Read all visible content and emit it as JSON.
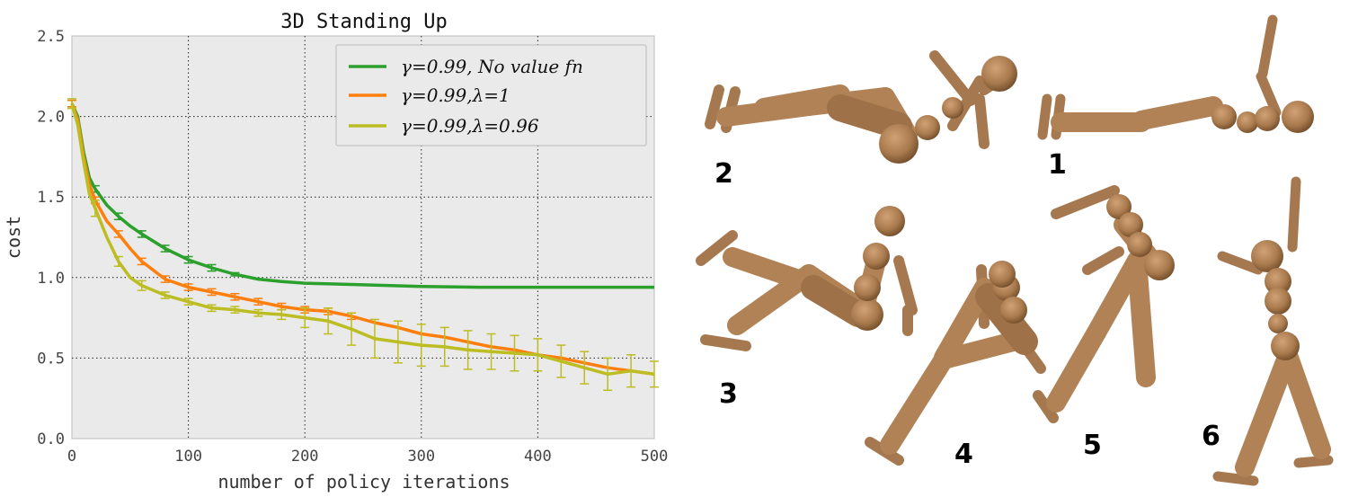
{
  "chart_data": {
    "type": "line",
    "title": "3D Standing Up",
    "xlabel": "number of policy iterations",
    "ylabel": "cost",
    "xlim": [
      0,
      500
    ],
    "ylim": [
      0,
      2.5
    ],
    "xticks": [
      "0",
      "100",
      "200",
      "300",
      "400",
      "500"
    ],
    "yticks": [
      "0.0",
      "0.5",
      "1.0",
      "1.5",
      "2.0",
      "2.5"
    ],
    "grid": true,
    "legend_position": "top-right",
    "series": [
      {
        "name": "γ=0.99, No value fn",
        "color": "#2ca02c",
        "x": [
          0,
          5,
          10,
          15,
          20,
          30,
          40,
          50,
          60,
          80,
          100,
          120,
          140,
          160,
          180,
          200,
          250,
          300,
          350,
          400,
          450,
          500
        ],
        "values": [
          2.08,
          2.0,
          1.78,
          1.62,
          1.55,
          1.45,
          1.38,
          1.32,
          1.27,
          1.18,
          1.11,
          1.06,
          1.02,
          0.99,
          0.975,
          0.965,
          0.955,
          0.945,
          0.94,
          0.94,
          0.94,
          0.94
        ],
        "errors": [
          0.02,
          0,
          0,
          0,
          0.02,
          0,
          0.02,
          0,
          0.02,
          0.02,
          0.02,
          0.02,
          0.01,
          0,
          0,
          0,
          0,
          0,
          0,
          0,
          0,
          0
        ]
      },
      {
        "name": "γ=0.99,λ=1",
        "color": "#ff7f0e",
        "x": [
          0,
          5,
          10,
          15,
          20,
          30,
          40,
          50,
          60,
          80,
          100,
          120,
          140,
          160,
          180,
          200,
          220,
          240,
          260,
          280,
          300,
          320,
          340,
          360,
          380,
          400,
          420,
          440,
          460,
          480,
          500
        ],
        "values": [
          2.08,
          1.98,
          1.75,
          1.58,
          1.48,
          1.35,
          1.27,
          1.18,
          1.1,
          0.99,
          0.94,
          0.91,
          0.88,
          0.85,
          0.82,
          0.8,
          0.79,
          0.76,
          0.72,
          0.69,
          0.65,
          0.63,
          0.6,
          0.57,
          0.55,
          0.52,
          0.5,
          0.47,
          0.44,
          0.42,
          0.4
        ],
        "errors": [
          0.02,
          0,
          0,
          0,
          0.02,
          0,
          0.02,
          0,
          0.02,
          0.02,
          0.02,
          0.02,
          0.02,
          0.02,
          0.02,
          0.02,
          0.02,
          0.02,
          0,
          0,
          0,
          0,
          0,
          0,
          0,
          0,
          0,
          0,
          0,
          0,
          0
        ]
      },
      {
        "name": "γ=0.99,λ=0.96",
        "color": "#bcbd22",
        "x": [
          0,
          5,
          10,
          15,
          20,
          30,
          40,
          50,
          60,
          80,
          100,
          120,
          140,
          160,
          180,
          200,
          220,
          240,
          260,
          280,
          300,
          320,
          340,
          360,
          380,
          400,
          420,
          440,
          460,
          480,
          500
        ],
        "values": [
          2.08,
          1.95,
          1.72,
          1.52,
          1.43,
          1.25,
          1.1,
          1.0,
          0.95,
          0.89,
          0.85,
          0.81,
          0.8,
          0.78,
          0.77,
          0.75,
          0.73,
          0.68,
          0.62,
          0.6,
          0.58,
          0.57,
          0.55,
          0.54,
          0.53,
          0.52,
          0.48,
          0.44,
          0.4,
          0.42,
          0.4
        ],
        "errors": [
          0.03,
          0,
          0,
          0,
          0.05,
          0,
          0.03,
          0,
          0.03,
          0.02,
          0.02,
          0.02,
          0.02,
          0.02,
          0.03,
          0.06,
          0.08,
          0.1,
          0.12,
          0.13,
          0.13,
          0.12,
          0.12,
          0.11,
          0.11,
          0.1,
          0.1,
          0.1,
          0.1,
          0.1,
          0.08
        ]
      }
    ]
  },
  "figure_labels": [
    "2",
    "1",
    "3",
    "4",
    "5",
    "6"
  ],
  "colors": {
    "plot_background": "#eaeaea",
    "grid": "#000000",
    "figure_body": "#b08256",
    "figure_shadow": "#8a5f37"
  }
}
